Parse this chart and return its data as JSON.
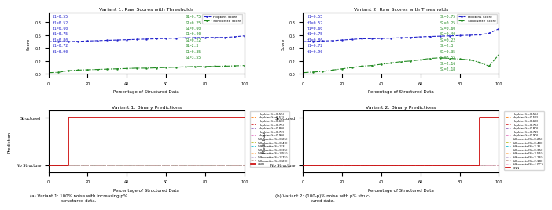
{
  "title1_raw": "Variant 1: Raw Scores with Thresholds",
  "title2_raw": "Variant 2: Raw Scores with Thresholds",
  "title1_bin": "Variant 1: Binary Predictions",
  "title2_bin": "Variant 2: Binary Predictions",
  "xlabel": "Percentage of Structured Data",
  "ylabel_raw": "Score",
  "ylabel_bin": "Prediction",
  "caption_a": "(a) Variant 1: 100% noise with increasing p%\nstructured data.",
  "caption_b": "(b) Variant 2: (100-p)% noise with p% struc-\ntured data.",
  "x": [
    0,
    5,
    10,
    15,
    20,
    25,
    30,
    35,
    40,
    45,
    50,
    55,
    60,
    65,
    70,
    75,
    80,
    85,
    90,
    95,
    100
  ],
  "v1_hopkins": [
    0.5,
    0.5,
    0.5,
    0.505,
    0.51,
    0.515,
    0.52,
    0.525,
    0.53,
    0.535,
    0.54,
    0.545,
    0.55,
    0.555,
    0.56,
    0.562,
    0.565,
    0.565,
    0.565,
    0.575,
    0.59
  ],
  "v1_silhouette": [
    0.02,
    0.025,
    0.05,
    0.06,
    0.065,
    0.07,
    0.075,
    0.08,
    0.085,
    0.09,
    0.09,
    0.095,
    0.1,
    0.105,
    0.11,
    0.115,
    0.115,
    0.12,
    0.12,
    0.125,
    0.13
  ],
  "v2_hopkins": [
    0.5,
    0.505,
    0.51,
    0.515,
    0.525,
    0.535,
    0.545,
    0.545,
    0.55,
    0.555,
    0.56,
    0.565,
    0.575,
    0.58,
    0.585,
    0.59,
    0.595,
    0.6,
    0.605,
    0.63,
    0.7
  ],
  "v2_silhouette": [
    0.02,
    0.03,
    0.04,
    0.06,
    0.08,
    0.1,
    0.12,
    0.13,
    0.15,
    0.17,
    0.19,
    0.2,
    0.22,
    0.24,
    0.25,
    0.24,
    0.23,
    0.22,
    0.18,
    0.12,
    0.3
  ],
  "color_hopkins": "#2222cc",
  "color_silhouette": "#228B22",
  "color_red": "#cc0000",
  "color_threshold_h": "#2222cc",
  "color_threshold_s": "#228B22",
  "v1_left_labels": [
    "t1=0.55",
    "t1=0.52",
    "t1=0.60",
    "t1=0.75",
    "t1=0.80",
    "t1=0.72",
    "t1=0.90"
  ],
  "v1_right_labels": [
    "S1=0.75",
    "S1=0.25",
    "S1=0.60",
    "S1=0.40",
    "S1=0.22",
    "S1=2.3",
    "S1=0.35",
    "S1=3.55"
  ],
  "v2_left_labels": [
    "t1=0.55",
    "t1=0.52",
    "t1=0.60",
    "t1=0.75",
    "t1=0.80",
    "t1=0.72",
    "t1=0.90"
  ],
  "v2_right_labels": [
    "S1=0.75",
    "S1=0.25",
    "S1=0.60",
    "S1=0.40",
    "S1=0.22",
    "S1=2.3",
    "S1=0.35",
    "S1=3.55",
    "S1=2.16",
    "S1=2.18"
  ],
  "bin1_legend_labels": [
    "Hopkins(t=0.55)",
    "Hopkins(t=0.52)",
    "Hopkins(t=0.60)",
    "Hopkins(t=0.75)",
    "Hopkins(t=0.80)",
    "Hopkins(t=0.72)",
    "Hopkins(t=0.90)",
    "Silhouette(S=0.25)",
    "Silhouette(S=0.40)",
    "Silhouette(S=2.3)",
    "Silhouette(S=0.35)",
    "Silhouette(S=3.55)",
    "Silhouette(S=2.75)",
    "Silhouette(S=0.20)",
    "GNN"
  ],
  "bin2_legend_labels": [
    "Hopkins(t=0.55)",
    "Hopkins(t=0.52)",
    "Hopkins(t=0.60)",
    "Hopkins(t=0.75)",
    "Hopkins(t=0.80)",
    "Hopkins(t=0.72)",
    "Hopkins(t=0.90)",
    "Silhouette(S=0.25)",
    "Silhouette(S=0.40)",
    "Silhouette(S=2.3)",
    "Silhouette(S=0.35)",
    "Silhouette(S=3.55)",
    "Silhouette(S=2.16)",
    "Silhouette(S=2.18)",
    "Silhouette(S=4.0C)",
    "GNN"
  ],
  "bin_colors": [
    "#1f77b4",
    "#ff7f0e",
    "#2ca02c",
    "#d62728",
    "#9467bd",
    "#8c564b",
    "#e377c2",
    "#7f7f7f",
    "#bcbd22",
    "#17becf",
    "#aec7e8",
    "#ffbb78",
    "#c5b0d5",
    "#c49c94",
    "#f7b6d2"
  ],
  "bin_switch_v1": 10,
  "bin_switch_v2": 90
}
